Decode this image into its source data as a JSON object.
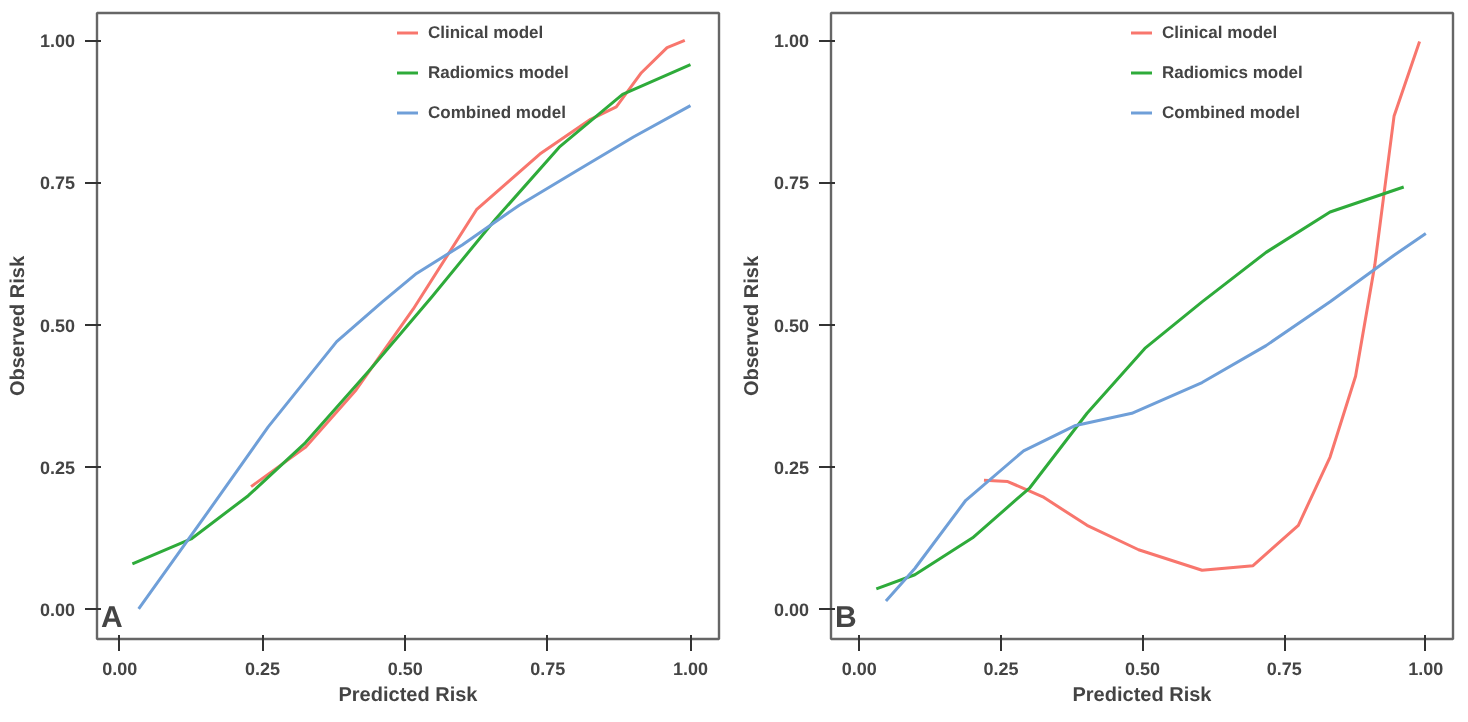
{
  "chart_data": [
    {
      "type": "line",
      "xlabel": "Predicted Risk",
      "ylabel": "Observed Risk",
      "annotations": [
        "A"
      ],
      "legend": "top right",
      "grid": false,
      "xlim": [
        -0.04,
        1.05
      ],
      "ylim": [
        -0.053,
        1.048
      ],
      "xticks": [
        {
          "value": 0,
          "label": "0.00"
        },
        {
          "value": 0.25,
          "label": "0.25"
        },
        {
          "value": 0.5,
          "label": "0.50"
        },
        {
          "value": 0.75,
          "label": "0.75"
        },
        {
          "value": 1,
          "label": "1.00"
        }
      ],
      "yticks": [
        {
          "value": 0,
          "label": "0.00"
        },
        {
          "value": 0.25,
          "label": "0.25"
        },
        {
          "value": 0.5,
          "label": "0.50"
        },
        {
          "value": 0.75,
          "label": "0.75"
        },
        {
          "value": 1,
          "label": "1.00"
        }
      ],
      "series": [
        {
          "name": "Clinical model",
          "color": "#f8766d",
          "x": [
            0.23,
            0.325,
            0.414,
            0.514,
            0.625,
            0.736,
            0.825,
            0.87,
            0.914,
            0.959,
            0.99
          ],
          "values": [
            0.215,
            0.284,
            0.385,
            0.527,
            0.702,
            0.8,
            0.861,
            0.883,
            0.943,
            0.987,
            1.0
          ]
        },
        {
          "name": "Radiomics model",
          "color": "#2eab3a",
          "x": [
            0.022,
            0.125,
            0.225,
            0.325,
            0.436,
            0.547,
            0.659,
            0.77,
            0.881,
            1.0
          ],
          "values": [
            0.079,
            0.123,
            0.199,
            0.292,
            0.418,
            0.549,
            0.686,
            0.812,
            0.905,
            0.957
          ]
        },
        {
          "name": "Combined model",
          "color": "#6f9fd8",
          "x": [
            0.033,
            0.147,
            0.26,
            0.38,
            0.46,
            0.52,
            0.6,
            0.7,
            0.8,
            0.9,
            1.0
          ],
          "values": [
            0.0,
            0.16,
            0.32,
            0.47,
            0.54,
            0.59,
            0.64,
            0.71,
            0.77,
            0.83,
            0.885
          ]
        }
      ]
    },
    {
      "type": "line",
      "xlabel": "Predicted Risk",
      "ylabel": "Observed Risk",
      "annotations": [
        "B"
      ],
      "legend": "top right",
      "grid": false,
      "xlim": [
        -0.05,
        1.048
      ],
      "ylim": [
        -0.053,
        1.048
      ],
      "xticks": [
        {
          "value": 0,
          "label": "0.00"
        },
        {
          "value": 0.25,
          "label": "0.25"
        },
        {
          "value": 0.5,
          "label": "0.50"
        },
        {
          "value": 0.75,
          "label": "0.75"
        },
        {
          "value": 1,
          "label": "1.00"
        }
      ],
      "yticks": [
        {
          "value": 0,
          "label": "0.00"
        },
        {
          "value": 0.25,
          "label": "0.25"
        },
        {
          "value": 0.5,
          "label": "0.50"
        },
        {
          "value": 0.75,
          "label": "0.75"
        },
        {
          "value": 1,
          "label": "1.00"
        }
      ],
      "series": [
        {
          "name": "Clinical model",
          "color": "#f8766d",
          "x": [
            0.22,
            0.262,
            0.324,
            0.402,
            0.493,
            0.605,
            0.695,
            0.775,
            0.831,
            0.876,
            0.91,
            0.944,
            0.989
          ],
          "values": [
            0.226,
            0.224,
            0.197,
            0.147,
            0.104,
            0.068,
            0.076,
            0.147,
            0.267,
            0.409,
            0.605,
            0.867,
            0.998
          ]
        },
        {
          "name": "Radiomics model",
          "color": "#2eab3a",
          "x": [
            0.03,
            0.098,
            0.2,
            0.301,
            0.402,
            0.504,
            0.605,
            0.718,
            0.831,
            0.961
          ],
          "values": [
            0.035,
            0.06,
            0.125,
            0.213,
            0.344,
            0.458,
            0.54,
            0.627,
            0.698,
            0.742
          ]
        },
        {
          "name": "Combined model",
          "color": "#6f9fd8",
          "x": [
            0.047,
            0.098,
            0.188,
            0.29,
            0.38,
            0.481,
            0.605,
            0.718,
            0.831,
            0.944,
            1.0
          ],
          "values": [
            0.014,
            0.071,
            0.191,
            0.278,
            0.322,
            0.344,
            0.398,
            0.463,
            0.54,
            0.622,
            0.66
          ]
        }
      ]
    }
  ]
}
